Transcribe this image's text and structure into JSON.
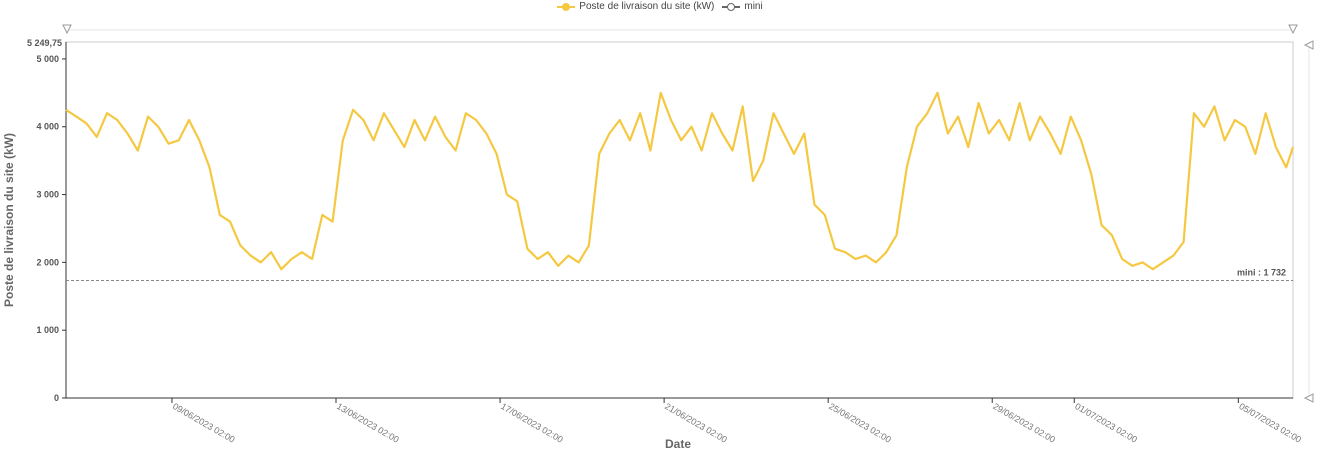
{
  "legend": {
    "series_label": "Poste de livraison du site (kW)",
    "min_label": "mini"
  },
  "colors": {
    "series": "#f5c842",
    "min_line": "#888888",
    "axis": "#666666",
    "marker": "#999999"
  },
  "chart_data": {
    "type": "line",
    "ylabel": "Poste de livraison du site (kW)",
    "xlabel": "Date",
    "ylim": [
      0,
      5249.75
    ],
    "ymax_label": "5 249,75",
    "yticks": [
      {
        "value": 0,
        "label": "0"
      },
      {
        "value": 1000,
        "label": "1 000"
      },
      {
        "value": 2000,
        "label": "2 000"
      },
      {
        "value": 3000,
        "label": "3 000"
      },
      {
        "value": 4000,
        "label": "4 000"
      },
      {
        "value": 5000,
        "label": "5 000"
      }
    ],
    "xlim": [
      "2023-06-06T12:00",
      "2023-07-06T10:00"
    ],
    "xticks": [
      {
        "date": "2023-06-09T02:00",
        "label": "09/06/2023 02:00"
      },
      {
        "date": "2023-06-13T02:00",
        "label": "13/06/2023 02:00"
      },
      {
        "date": "2023-06-17T02:00",
        "label": "17/06/2023 02:00"
      },
      {
        "date": "2023-06-21T02:00",
        "label": "21/06/2023 02:00"
      },
      {
        "date": "2023-06-25T02:00",
        "label": "25/06/2023 02:00"
      },
      {
        "date": "2023-06-29T02:00",
        "label": "29/06/2023 02:00"
      },
      {
        "date": "2023-07-01T02:00",
        "label": "01/07/2023 02:00"
      },
      {
        "date": "2023-07-05T02:00",
        "label": "05/07/2023 02:00"
      }
    ],
    "min_line": {
      "value": 1732,
      "label": "mini : 1 732"
    },
    "series": [
      {
        "name": "Poste de livraison du site (kW)",
        "x": [
          "2023-06-06T12:00",
          "2023-06-06T18:00",
          "2023-06-07T00:00",
          "2023-06-07T06:00",
          "2023-06-07T12:00",
          "2023-06-07T18:00",
          "2023-06-08T00:00",
          "2023-06-08T06:00",
          "2023-06-08T12:00",
          "2023-06-08T18:00",
          "2023-06-09T00:00",
          "2023-06-09T06:00",
          "2023-06-09T12:00",
          "2023-06-09T18:00",
          "2023-06-10T00:00",
          "2023-06-10T06:00",
          "2023-06-10T12:00",
          "2023-06-10T18:00",
          "2023-06-11T00:00",
          "2023-06-11T06:00",
          "2023-06-11T12:00",
          "2023-06-11T18:00",
          "2023-06-12T00:00",
          "2023-06-12T06:00",
          "2023-06-12T12:00",
          "2023-06-12T18:00",
          "2023-06-13T00:00",
          "2023-06-13T06:00",
          "2023-06-13T12:00",
          "2023-06-13T18:00",
          "2023-06-14T00:00",
          "2023-06-14T06:00",
          "2023-06-14T12:00",
          "2023-06-14T18:00",
          "2023-06-15T00:00",
          "2023-06-15T06:00",
          "2023-06-15T12:00",
          "2023-06-15T18:00",
          "2023-06-16T00:00",
          "2023-06-16T06:00",
          "2023-06-16T12:00",
          "2023-06-16T18:00",
          "2023-06-17T00:00",
          "2023-06-17T06:00",
          "2023-06-17T12:00",
          "2023-06-17T18:00",
          "2023-06-18T00:00",
          "2023-06-18T06:00",
          "2023-06-18T12:00",
          "2023-06-18T18:00",
          "2023-06-19T00:00",
          "2023-06-19T06:00",
          "2023-06-19T12:00",
          "2023-06-19T18:00",
          "2023-06-20T00:00",
          "2023-06-20T06:00",
          "2023-06-20T12:00",
          "2023-06-20T18:00",
          "2023-06-21T00:00",
          "2023-06-21T06:00",
          "2023-06-21T12:00",
          "2023-06-21T18:00",
          "2023-06-22T00:00",
          "2023-06-22T06:00",
          "2023-06-22T12:00",
          "2023-06-22T18:00",
          "2023-06-23T00:00",
          "2023-06-23T06:00",
          "2023-06-23T12:00",
          "2023-06-23T18:00",
          "2023-06-24T00:00",
          "2023-06-24T06:00",
          "2023-06-24T12:00",
          "2023-06-24T18:00",
          "2023-06-25T00:00",
          "2023-06-25T06:00",
          "2023-06-25T12:00",
          "2023-06-25T18:00",
          "2023-06-26T00:00",
          "2023-06-26T06:00",
          "2023-06-26T12:00",
          "2023-06-26T18:00",
          "2023-06-27T00:00",
          "2023-06-27T06:00",
          "2023-06-27T12:00",
          "2023-06-27T18:00",
          "2023-06-28T00:00",
          "2023-06-28T06:00",
          "2023-06-28T12:00",
          "2023-06-28T18:00",
          "2023-06-29T00:00",
          "2023-06-29T06:00",
          "2023-06-29T12:00",
          "2023-06-29T18:00",
          "2023-06-30T00:00",
          "2023-06-30T06:00",
          "2023-06-30T12:00",
          "2023-06-30T18:00",
          "2023-07-01T00:00",
          "2023-07-01T06:00",
          "2023-07-01T12:00",
          "2023-07-01T18:00",
          "2023-07-02T00:00",
          "2023-07-02T06:00",
          "2023-07-02T12:00",
          "2023-07-02T18:00",
          "2023-07-03T00:00",
          "2023-07-03T06:00",
          "2023-07-03T12:00",
          "2023-07-03T18:00",
          "2023-07-04T00:00",
          "2023-07-04T06:00",
          "2023-07-04T12:00",
          "2023-07-04T18:00",
          "2023-07-05T00:00",
          "2023-07-05T06:00",
          "2023-07-05T12:00",
          "2023-07-05T18:00",
          "2023-07-06T00:00",
          "2023-07-06T06:00",
          "2023-07-06T10:00"
        ],
        "values": [
          4250,
          4150,
          4050,
          3850,
          4200,
          4100,
          3900,
          3650,
          4150,
          4000,
          3750,
          3800,
          4100,
          3800,
          3400,
          2700,
          2600,
          2250,
          2100,
          2000,
          2150,
          1900,
          2050,
          2150,
          2050,
          2700,
          2600,
          3800,
          4250,
          4100,
          3800,
          4200,
          3950,
          3700,
          4100,
          3800,
          4150,
          3850,
          3650,
          4200,
          4100,
          3900,
          3600,
          3000,
          2900,
          2200,
          2050,
          2150,
          1950,
          2100,
          2000,
          2250,
          3600,
          3900,
          4100,
          3800,
          4200,
          3650,
          4500,
          4100,
          3800,
          4000,
          3650,
          4200,
          3900,
          3650,
          4300,
          3200,
          3500,
          4200,
          3900,
          3600,
          3900,
          2850,
          2700,
          2200,
          2150,
          2050,
          2100,
          2000,
          2150,
          2400,
          3400,
          4000,
          4200,
          4500,
          3900,
          4150,
          3700,
          4350,
          3900,
          4100,
          3800,
          4350,
          3800,
          4150,
          3900,
          3600,
          4150,
          3800,
          3300,
          2550,
          2400,
          2050,
          1950,
          2000,
          1900,
          2000,
          2100,
          2300,
          4200,
          4000,
          4300,
          3800,
          4100,
          4000,
          3600,
          4200,
          3700,
          3400,
          3700
        ]
      }
    ]
  }
}
